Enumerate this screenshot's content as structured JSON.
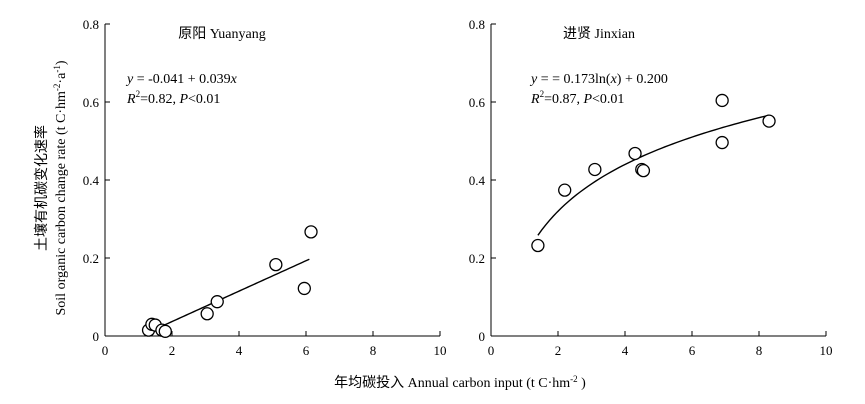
{
  "chart_data": [
    {
      "type": "scatter",
      "title": "原阳 Yuanyang",
      "xlim": [
        0,
        10
      ],
      "ylim": [
        0,
        0.8
      ],
      "xticks": [
        0,
        2,
        4,
        6,
        8,
        10
      ],
      "yticks": [
        0,
        0.2,
        0.4,
        0.6,
        0.8
      ],
      "points": [
        {
          "x": 1.3,
          "y": 0.015
        },
        {
          "x": 1.4,
          "y": 0.03
        },
        {
          "x": 1.5,
          "y": 0.028
        },
        {
          "x": 1.7,
          "y": 0.015
        },
        {
          "x": 1.8,
          "y": 0.012
        },
        {
          "x": 3.05,
          "y": 0.057
        },
        {
          "x": 3.35,
          "y": 0.088
        },
        {
          "x": 5.1,
          "y": 0.183
        },
        {
          "x": 5.95,
          "y": 0.122
        },
        {
          "x": 6.15,
          "y": 0.267
        }
      ],
      "fit": {
        "model": "linear",
        "a": -0.041,
        "b": 0.039,
        "xrange": [
          1.5,
          6.1
        ]
      },
      "equation": {
        "line1": [
          "y",
          " = -0.041 + 0.039",
          "x"
        ],
        "line2": [
          "R",
          "2",
          "=0.82, ",
          "P",
          "<0.01"
        ]
      }
    },
    {
      "type": "scatter",
      "title": "进贤 Jinxian",
      "xlim": [
        0,
        10
      ],
      "ylim": [
        0,
        0.8
      ],
      "xticks": [
        0,
        2,
        4,
        6,
        8,
        10
      ],
      "yticks": [
        0,
        0.2,
        0.4,
        0.6,
        0.8
      ],
      "points": [
        {
          "x": 1.4,
          "y": 0.232
        },
        {
          "x": 2.2,
          "y": 0.374
        },
        {
          "x": 3.1,
          "y": 0.427
        },
        {
          "x": 4.3,
          "y": 0.468
        },
        {
          "x": 4.5,
          "y": 0.427
        },
        {
          "x": 4.55,
          "y": 0.424
        },
        {
          "x": 6.9,
          "y": 0.604
        },
        {
          "x": 6.9,
          "y": 0.496
        },
        {
          "x": 8.3,
          "y": 0.551
        }
      ],
      "fit": {
        "model": "log",
        "a": 0.2,
        "b": 0.173,
        "xrange": [
          1.4,
          8.3
        ]
      },
      "equation": {
        "line1": [
          "y",
          " = = 0.173ln(",
          "x",
          ") + 0.200"
        ],
        "line2": [
          "R",
          "2",
          "=0.87, ",
          "P",
          "<0.01"
        ]
      }
    }
  ],
  "shared": {
    "xlabel": "年均碳投入 Annual carbon input (t C·hm",
    "xlabel_sup": "-2",
    "xlabel_end": " )",
    "ylabel_line1": "土壤有机碳变化速率",
    "ylabel_line2": "Soil organic carbon change rate (t C·hm",
    "ylabel_sup1": "-2",
    "ylabel_mid": "·a",
    "ylabel_sup2": "-1",
    "ylabel_end": ")"
  }
}
